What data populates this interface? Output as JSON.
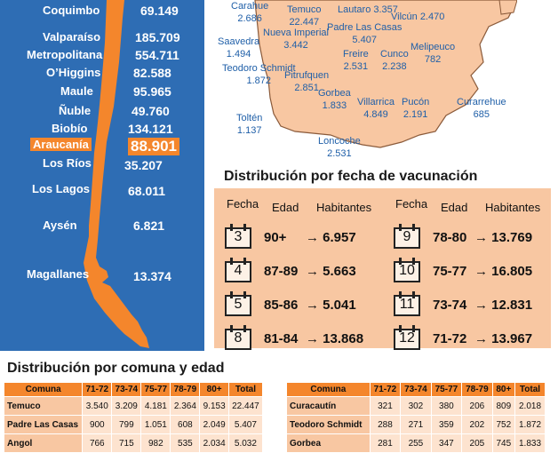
{
  "regions": [
    {
      "name": "Coquimbo",
      "value": "69.149",
      "highlight": false
    },
    {
      "name": "Valparaíso",
      "value": "185.709",
      "highlight": false
    },
    {
      "name": "Metropolitana",
      "value": "554.711",
      "highlight": false
    },
    {
      "name": "O’Higgins",
      "value": "82.588",
      "highlight": false
    },
    {
      "name": "Maule",
      "value": "95.965",
      "highlight": false
    },
    {
      "name": "Ñuble",
      "value": "49.760",
      "highlight": false
    },
    {
      "name": "Biobío",
      "value": "134.121",
      "highlight": false
    },
    {
      "name": "Araucanía",
      "value": "88.901",
      "highlight": true
    },
    {
      "name": "Los Ríos",
      "value": "35.207",
      "highlight": false
    },
    {
      "name": "Los Lagos",
      "value": "68.011",
      "highlight": false
    },
    {
      "name": "Aysén",
      "value": "6.821",
      "highlight": false
    },
    {
      "name": "Magallanes",
      "value": "13.374",
      "highlight": false
    }
  ],
  "communes": [
    {
      "name": "Carahue",
      "value": "2.686"
    },
    {
      "name": "Temuco",
      "value": "22.447"
    },
    {
      "name": "Lautaro",
      "value": "3.357"
    },
    {
      "name": "Vilcún",
      "value": "2.470"
    },
    {
      "name": "Saavedra",
      "value": "1.494"
    },
    {
      "name": "Nueva Imperial",
      "value": "3.442"
    },
    {
      "name": "Padre Las Casas",
      "value": "5.407"
    },
    {
      "name": "Melipeuco",
      "value": "782"
    },
    {
      "name": "Teodoro Schmidt",
      "value": "1.872"
    },
    {
      "name": "Freire",
      "value": "2.531"
    },
    {
      "name": "Cunco",
      "value": "2.238"
    },
    {
      "name": "Pitrufquen",
      "value": "2.851"
    },
    {
      "name": "Gorbea",
      "value": "1.833"
    },
    {
      "name": "Villarrica",
      "value": "4.849"
    },
    {
      "name": "Pucón",
      "value": "2.191"
    },
    {
      "name": "Curarrehue",
      "value": "685"
    },
    {
      "name": "Toltén",
      "value": "1.137"
    },
    {
      "name": "Loncoche",
      "value": "2.531"
    }
  ],
  "fecha_section": {
    "title": "Distribución por fecha de vacunación",
    "headers": {
      "fecha": "Fecha",
      "edad": "Edad",
      "habitantes": "Habitantes"
    },
    "arrow": "→",
    "entries": [
      {
        "day": "3",
        "edad": "90+",
        "habitantes": "6.957"
      },
      {
        "day": "4",
        "edad": "87-89",
        "habitantes": "5.663"
      },
      {
        "day": "5",
        "edad": "85-86",
        "habitantes": "5.041"
      },
      {
        "day": "8",
        "edad": "81-84",
        "habitantes": "13.868"
      },
      {
        "day": "9",
        "edad": "78-80",
        "habitantes": "13.769"
      },
      {
        "day": "10",
        "edad": "75-77",
        "habitantes": "16.805"
      },
      {
        "day": "11",
        "edad": "73-74",
        "habitantes": "12.831"
      },
      {
        "day": "12",
        "edad": "71-72",
        "habitantes": "13.967"
      }
    ]
  },
  "comuna_section": {
    "title": "Distribución por comuna y edad",
    "columns": [
      "Comuna",
      "71-72",
      "73-74",
      "75-77",
      "78-79",
      "80+",
      "Total"
    ],
    "left_rows": [
      [
        "Temuco",
        "3.540",
        "3.209",
        "4.181",
        "2.364",
        "9.153",
        "22.447"
      ],
      [
        "Padre Las Casas",
        "900",
        "799",
        "1.051",
        "608",
        "2.049",
        "5.407"
      ],
      [
        "Angol",
        "766",
        "715",
        "982",
        "535",
        "2.034",
        "5.032"
      ]
    ],
    "right_rows": [
      [
        "Curacautín",
        "321",
        "302",
        "380",
        "206",
        "809",
        "2.018"
      ],
      [
        "Teodoro Schmidt",
        "288",
        "271",
        "359",
        "202",
        "752",
        "1.872"
      ],
      [
        "Gorbea",
        "281",
        "255",
        "347",
        "205",
        "745",
        "1.833"
      ]
    ]
  },
  "colors": {
    "blue": "#2e6db4",
    "orange": "#f4862c",
    "peach": "#f8c7a2",
    "text_blue": "#1f5fa8"
  },
  "chart_data": {
    "type": "table",
    "regional_totals": {
      "categories": [
        "Coquimbo",
        "Valparaíso",
        "Metropolitana",
        "O’Higgins",
        "Maule",
        "Ñuble",
        "Biobío",
        "Araucanía",
        "Los Ríos",
        "Los Lagos",
        "Aysén",
        "Magallanes"
      ],
      "values": [
        69149,
        185709,
        554711,
        82588,
        95965,
        49760,
        134121,
        88901,
        35207,
        68011,
        6821,
        13374
      ]
    },
    "schedule": {
      "fecha": [
        3,
        4,
        5,
        8,
        9,
        10,
        11,
        12
      ],
      "edad": [
        "90+",
        "87-89",
        "85-86",
        "81-84",
        "78-80",
        "75-77",
        "73-74",
        "71-72"
      ],
      "habitantes": [
        6957,
        5663,
        5041,
        13868,
        13769,
        16805,
        12831,
        13967
      ]
    }
  }
}
